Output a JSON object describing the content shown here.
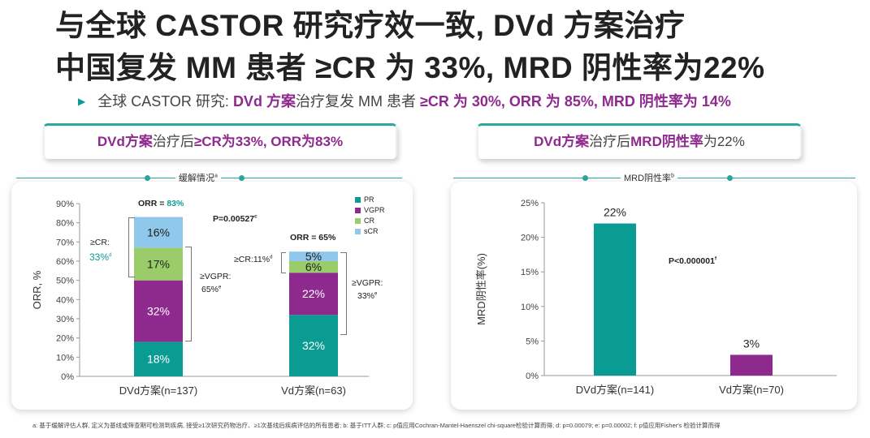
{
  "title": {
    "line1": "与全球 CASTOR 研究疗效一致, DVd 方案治疗",
    "line2": "中国复发 MM 患者 ≥CR 为 33%, MRD 阴性率为22%"
  },
  "bullet": {
    "prefix": "全球 CASTOR 研究: ",
    "hl1": "DVd 方案",
    "mid": "治疗复发 MM 患者 ",
    "hl2": "≥CR 为 30%, ORR 为 85%, MRD 阴性率为 14%"
  },
  "left_banner": {
    "hl1": "DVd方案",
    "mid": "治疗后",
    "hl2": "≥CR为33%, ORR为83%"
  },
  "right_banner": {
    "hl1": "DVd方案",
    "mid": "治疗后",
    "hl2": "MRD阴性率",
    "tail": "为22%"
  },
  "colors": {
    "PR": "#0a9c93",
    "VGPR": "#8e2a8e",
    "CR": "#9acd6a",
    "sCR": "#8fc8ea",
    "accent": "#2aa79e"
  },
  "chart_data": [
    {
      "type": "bar",
      "stacked": true,
      "title": "缓解情况",
      "title_sup": "a",
      "ylabel": "ORR, %",
      "ylim": [
        0,
        90
      ],
      "yticks": [
        "0%",
        "10%",
        "20%",
        "30%",
        "40%",
        "50%",
        "60%",
        "70%",
        "80%",
        "90%"
      ],
      "categories": [
        "DVd方案(n=137)",
        "Vd方案(n=63)"
      ],
      "series": [
        {
          "name": "PR",
          "values": [
            18,
            32
          ]
        },
        {
          "name": "VGPR",
          "values": [
            32,
            22
          ]
        },
        {
          "name": "CR",
          "values": [
            17,
            6
          ]
        },
        {
          "name": "sCR",
          "values": [
            16,
            5
          ]
        }
      ],
      "segment_labels": [
        [
          "18%",
          "32%",
          "17%",
          "16%"
        ],
        [
          "32%",
          "22%",
          "6%",
          "5%"
        ]
      ],
      "annotations": {
        "orr_dvd_prefix": "ORR = ",
        "orr_dvd_value": "83%",
        "orr_vd": "ORR = 65%",
        "p_value": "P=0.00527",
        "p_sup": "c",
        "cr_dvd_label": "≥CR:",
        "cr_dvd_value": "33%",
        "cr_dvd_sup": "d",
        "vgpr_dvd_label": "≥VGPR:",
        "vgpr_dvd_value": "65%",
        "vgpr_dvd_sup": "e",
        "cr_vd": "≥CR:11%",
        "cr_vd_sup": "d",
        "vgpr_vd_label": "≥VGPR:",
        "vgpr_vd_value": "33%",
        "vgpr_vd_sup": "e"
      }
    },
    {
      "type": "bar",
      "title": "MRD阴性率",
      "title_sup": "b",
      "ylabel": "MRD阴性率(%)",
      "ylim": [
        0,
        25
      ],
      "yticks": [
        "0%",
        "5%",
        "10%",
        "15%",
        "20%",
        "25%"
      ],
      "categories": [
        "DVd方案(n=141)",
        "Vd方案(n=70)"
      ],
      "values": [
        22,
        3
      ],
      "value_labels": [
        "22%",
        "3%"
      ],
      "p_value": "P<0.000001",
      "p_sup": "f"
    }
  ],
  "footnote": "a: 基于缓解评估人群, 定义为基线或筛查期可检测到疾病, 接受≥1次研究药物治疗、≥1次基线后疾病评估的所有患者; b: 基于ITT人群; c: p值应用Cochran-Mantel-Haenszel chi-square检验计算而得; d: p=0.00079; e: p=0.00002; f: p值应用Fisher's 检验计算而得"
}
